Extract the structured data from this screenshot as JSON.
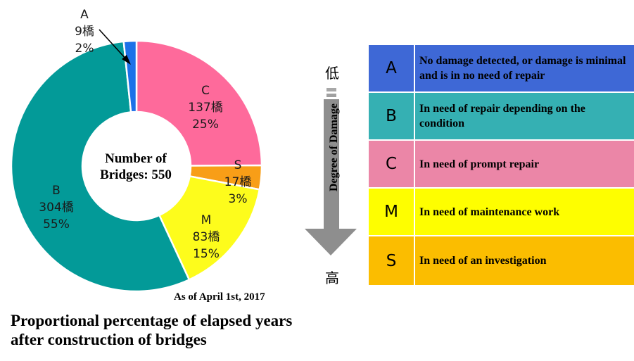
{
  "chart_data": {
    "type": "pie",
    "slices": [
      {
        "code": "C",
        "count_label": "137橋",
        "percent_label": "25%",
        "value": 137,
        "color": "#fe6a9b"
      },
      {
        "code": "S",
        "count_label": "17橋",
        "percent_label": "3%",
        "value": 17,
        "color": "#f89e17"
      },
      {
        "code": "M",
        "count_label": "83橋",
        "percent_label": "15%",
        "value": 83,
        "color": "#fdfc1c"
      },
      {
        "code": "B",
        "count_label": "304橋",
        "percent_label": "55%",
        "value": 304,
        "color": "#039a98"
      },
      {
        "code": "A",
        "count_label": "9橋",
        "percent_label": "2%",
        "value": 9,
        "color": "#1d71e8"
      }
    ],
    "center_label": "Number of Bridges: 550",
    "title": "Proportional percentage of elapsed years after construction of bridges"
  },
  "as_of": "As of April 1st, 2017",
  "arrow": {
    "low_label": "低",
    "high_label": "高",
    "label": "Degree of Damage"
  },
  "legend": [
    {
      "code": "A",
      "description": "No damage detected, or damage is minimal and is in no need of repair",
      "color": "#3e68d6"
    },
    {
      "code": "B",
      "description": "In need of repair depending on the condition",
      "color": "#35b0b3"
    },
    {
      "code": "C",
      "description": "In need of prompt repair",
      "color": "#eb86a7"
    },
    {
      "code": "M",
      "description": "In need of maintenance work",
      "color": "#fefe00"
    },
    {
      "code": "S",
      "description": "In need of an investigation",
      "color": "#fbbd00"
    }
  ]
}
